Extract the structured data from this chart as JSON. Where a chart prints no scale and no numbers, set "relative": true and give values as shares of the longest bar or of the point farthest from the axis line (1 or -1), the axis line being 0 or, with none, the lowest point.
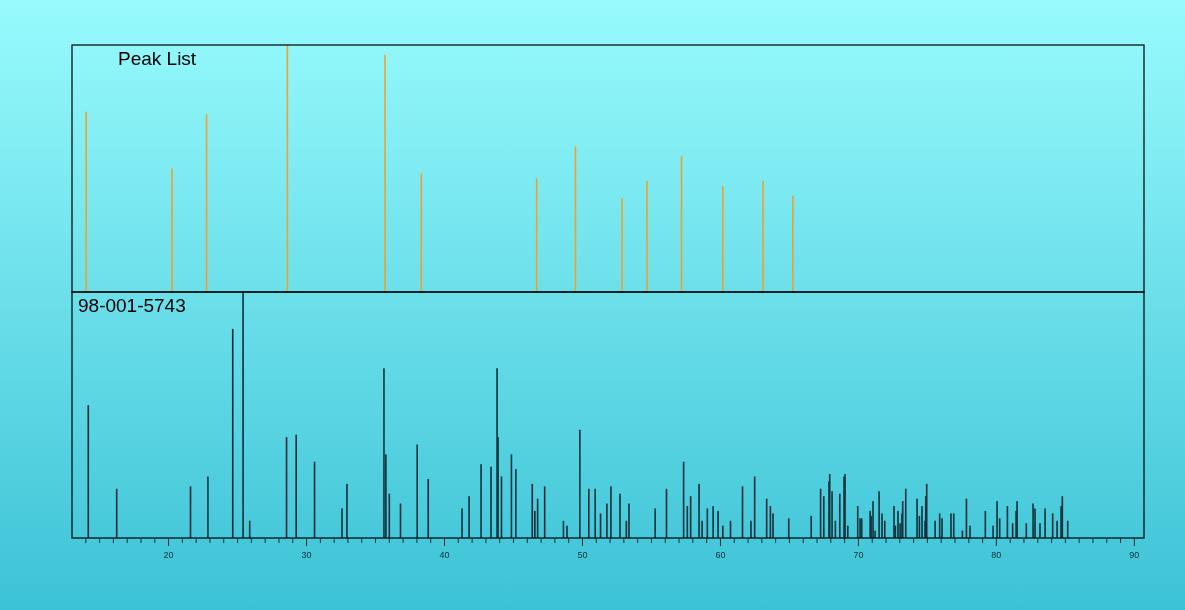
{
  "chart_data": [
    {
      "type": "bar",
      "title": "Peak List",
      "relative": true,
      "color": "#f0a030",
      "xlim": [
        13,
        90.7
      ],
      "tick_labels": false,
      "x": [
        14.03,
        20.25,
        22.75,
        28.61,
        35.69,
        38.32,
        46.68,
        49.49,
        52.87,
        54.68,
        57.18,
        60.17,
        63.09,
        65.25
      ],
      "values": [
        0.73,
        0.5,
        0.72,
        1,
        0.96,
        0.48,
        0.46,
        0.59,
        0.38,
        0.45,
        0.55,
        0.43,
        0.45,
        0.39
      ]
    },
    {
      "type": "bar",
      "title": "98-001-5743",
      "relative": true,
      "color": "#10303a",
      "xlim": [
        13,
        90.7
      ],
      "tick_labels": "x",
      "xticks": [
        {
          "value": 14,
          "label": null
        },
        {
          "value": 15,
          "label": null
        },
        {
          "value": 16,
          "label": null
        },
        {
          "value": 17,
          "label": null
        },
        {
          "value": 18,
          "label": null
        },
        {
          "value": 19,
          "label": null
        },
        20,
        {
          "value": 21,
          "label": null
        },
        {
          "value": 22,
          "label": null
        },
        {
          "value": 23,
          "label": null
        },
        {
          "value": 24,
          "label": null
        },
        {
          "value": 25,
          "label": null
        },
        {
          "value": 26,
          "label": null
        },
        {
          "value": 27,
          "label": null
        },
        {
          "value": 28,
          "label": null
        },
        {
          "value": 29,
          "label": null
        },
        30,
        {
          "value": 31,
          "label": null
        },
        {
          "value": 32,
          "label": null
        },
        {
          "value": 33,
          "label": null
        },
        {
          "value": 34,
          "label": null
        },
        {
          "value": 35,
          "label": null
        },
        {
          "value": 36,
          "label": null
        },
        {
          "value": 37,
          "label": null
        },
        {
          "value": 38,
          "label": null
        },
        {
          "value": 39,
          "label": null
        },
        40,
        {
          "value": 41,
          "label": null
        },
        {
          "value": 42,
          "label": null
        },
        {
          "value": 43,
          "label": null
        },
        {
          "value": 44,
          "label": null
        },
        {
          "value": 45,
          "label": null
        },
        {
          "value": 46,
          "label": null
        },
        {
          "value": 47,
          "label": null
        },
        {
          "value": 48,
          "label": null
        },
        {
          "value": 49,
          "label": null
        },
        50,
        {
          "value": 51,
          "label": null
        },
        {
          "value": 52,
          "label": null
        },
        {
          "value": 53,
          "label": null
        },
        {
          "value": 54,
          "label": null
        },
        {
          "value": 55,
          "label": null
        },
        {
          "value": 56,
          "label": null
        },
        {
          "value": 57,
          "label": null
        },
        {
          "value": 58,
          "label": null
        },
        {
          "value": 59,
          "label": null
        },
        60,
        {
          "value": 61,
          "label": null
        },
        {
          "value": 62,
          "label": null
        },
        {
          "value": 63,
          "label": null
        },
        {
          "value": 64,
          "label": null
        },
        {
          "value": 65,
          "label": null
        },
        {
          "value": 66,
          "label": null
        },
        {
          "value": 67,
          "label": null
        },
        {
          "value": 68,
          "label": null
        },
        {
          "value": 69,
          "label": null
        },
        70,
        {
          "value": 71,
          "label": null
        },
        {
          "value": 72,
          "label": null
        },
        {
          "value": 73,
          "label": null
        },
        {
          "value": 74,
          "label": null
        },
        {
          "value": 75,
          "label": null
        },
        {
          "value": 76,
          "label": null
        },
        {
          "value": 77,
          "label": null
        },
        {
          "value": 78,
          "label": null
        },
        {
          "value": 79,
          "label": null
        },
        80,
        {
          "value": 81,
          "label": null
        },
        {
          "value": 82,
          "label": null
        },
        {
          "value": 83,
          "label": null
        },
        {
          "value": 84,
          "label": null
        },
        {
          "value": 85,
          "label": null
        },
        {
          "value": 86,
          "label": null
        },
        {
          "value": 87,
          "label": null
        },
        {
          "value": 88,
          "label": null
        },
        {
          "value": 89,
          "label": null
        },
        90
      ],
      "x": [
        14.18,
        16.24,
        21.59,
        22.85,
        24.65,
        25.4,
        25.88,
        28.55,
        29.25,
        30.58,
        32.57,
        32.93,
        35.61,
        35.75,
        36,
        36.81,
        38.02,
        38.82,
        41.27,
        41.78,
        42.65,
        43.37,
        43.81,
        43.88,
        44.13,
        44.85,
        45.17,
        46.36,
        46.55,
        46.75,
        47.26,
        48.62,
        48.88,
        49.81,
        50.46,
        50.92,
        51.31,
        51.77,
        52.06,
        52.72,
        53.18,
        53.37,
        55.27,
        56.09,
        57.33,
        57.6,
        57.84,
        58.45,
        58.67,
        59.05,
        59.47,
        59.83,
        60.17,
        60.73,
        61.6,
        62.21,
        62.48,
        63.35,
        63.62,
        63.81,
        64.95,
        66.58,
        67.26,
        67.49,
        67.87,
        67.92,
        68.09,
        68.33,
        68.65,
        68.96,
        69.03,
        69.23,
        69.95,
        70.12,
        70.24,
        70.85,
        70.92,
        71.06,
        71.21,
        71.5,
        71.71,
        71.91,
        72.58,
        72.68,
        72.87,
        73.02,
        73.16,
        73.21,
        73.43,
        74.25,
        74.42,
        74.61,
        74.83,
        74.88,
        74.95,
        75.56,
        75.89,
        76.06,
        76.71,
        76.91,
        77.54,
        77.83,
        78.09,
        79.2,
        79.76,
        80.05,
        80.24,
        80.8,
        81.18,
        81.43,
        81.5,
        82.17,
        82.66,
        82.8,
        83.16,
        83.53,
        84.08,
        84.4,
        84.69,
        84.78,
        85.17
      ],
      "values": [
        0.54,
        0.2,
        0.21,
        0.25,
        0.85,
        1,
        0.07,
        0.41,
        0.42,
        0.31,
        0.12,
        0.22,
        0.69,
        0.34,
        0.18,
        0.14,
        0.38,
        0.24,
        0.12,
        0.17,
        0.3,
        0.29,
        0.69,
        0.41,
        0.25,
        0.34,
        0.28,
        0.22,
        0.11,
        0.16,
        0.21,
        0.07,
        0.05,
        0.44,
        0.2,
        0.2,
        0.1,
        0.14,
        0.21,
        0.18,
        0.07,
        0.14,
        0.12,
        0.2,
        0.31,
        0.13,
        0.17,
        0.22,
        0.07,
        0.12,
        0.13,
        0.11,
        0.05,
        0.07,
        0.21,
        0.07,
        0.25,
        0.16,
        0.13,
        0.1,
        0.08,
        0.09,
        0.2,
        0.17,
        0.23,
        0.26,
        0.19,
        0.07,
        0.18,
        0.25,
        0.26,
        0.05,
        0.13,
        0.08,
        0.08,
        0.11,
        0.09,
        0.15,
        0.03,
        0.19,
        0.1,
        0.07,
        0.13,
        0.05,
        0.11,
        0.06,
        0.1,
        0.15,
        0.2,
        0.16,
        0.09,
        0.13,
        0.07,
        0.17,
        0.22,
        0.07,
        0.1,
        0.08,
        0.1,
        0.1,
        0.03,
        0.16,
        0.05,
        0.11,
        0.05,
        0.15,
        0.08,
        0.13,
        0.06,
        0.11,
        0.15,
        0.06,
        0.14,
        0.12,
        0.06,
        0.12,
        0.1,
        0.07,
        0.13,
        0.17,
        0.07
      ]
    }
  ]
}
